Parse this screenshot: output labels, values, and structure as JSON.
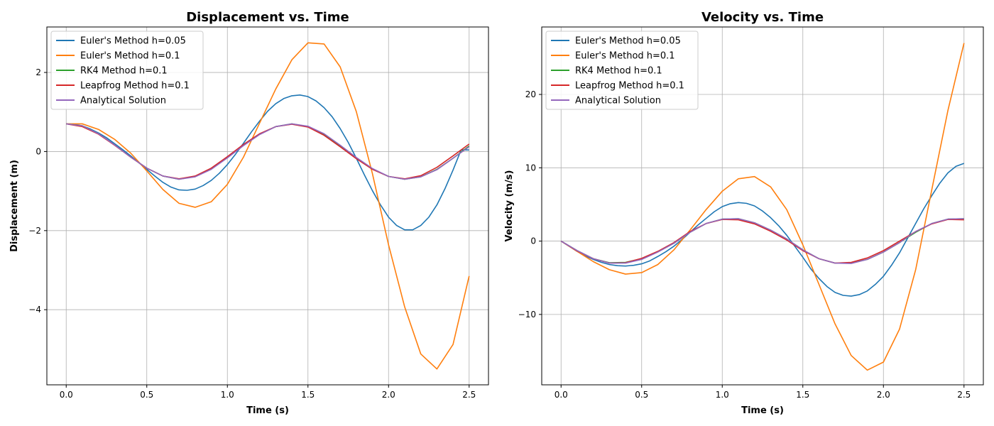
{
  "chart_data": [
    {
      "type": "line",
      "title": "Displacement vs. Time",
      "xlabel": "Time (s)",
      "ylabel": "Displacement (m)",
      "xlim": [
        -0.12,
        2.62
      ],
      "ylim": [
        -5.9,
        3.15
      ],
      "xticks": [
        0.0,
        0.5,
        1.0,
        1.5,
        2.0,
        2.5
      ],
      "xtick_labels": [
        "0.0",
        "0.5",
        "1.0",
        "1.5",
        "2.0",
        "2.5"
      ],
      "yticks": [
        -4,
        -2,
        0,
        2
      ],
      "ytick_labels": [
        "−4",
        "−2",
        "0",
        "2"
      ],
      "grid": true,
      "legend": "upper left",
      "series": [
        {
          "name": "Euler's Method h=0.05",
          "color": "#1f77b4",
          "x": [
            0,
            0.05,
            0.1,
            0.15,
            0.2,
            0.25,
            0.3,
            0.35,
            0.4,
            0.45,
            0.5,
            0.55,
            0.6,
            0.65,
            0.7,
            0.75,
            0.8,
            0.85,
            0.9,
            0.95,
            1.0,
            1.05,
            1.1,
            1.15,
            1.2,
            1.25,
            1.3,
            1.35,
            1.4,
            1.45,
            1.5,
            1.55,
            1.6,
            1.65,
            1.7,
            1.75,
            1.8,
            1.85,
            1.9,
            1.95,
            2.0,
            2.05,
            2.1,
            2.15,
            2.2,
            2.25,
            2.3,
            2.35,
            2.4,
            2.45,
            2.5
          ],
          "y": [
            0.7,
            0.69,
            0.65,
            0.57,
            0.47,
            0.35,
            0.2,
            0.05,
            -0.11,
            -0.28,
            -0.45,
            -0.62,
            -0.78,
            -0.9,
            -0.97,
            -0.98,
            -0.95,
            -0.86,
            -0.73,
            -0.55,
            -0.33,
            -0.07,
            0.21,
            0.5,
            0.77,
            1.02,
            1.21,
            1.34,
            1.41,
            1.43,
            1.39,
            1.28,
            1.11,
            0.88,
            0.58,
            0.23,
            -0.17,
            -0.59,
            -0.99,
            -1.35,
            -1.66,
            -1.87,
            -1.98,
            -1.98,
            -1.87,
            -1.66,
            -1.35,
            -0.94,
            -0.47,
            0.04,
            0.04
          ]
        },
        {
          "name": "Euler's Method h=0.1",
          "color": "#ff7f0e",
          "x": [
            0,
            0.1,
            0.2,
            0.3,
            0.4,
            0.5,
            0.6,
            0.7,
            0.8,
            0.9,
            1.0,
            1.1,
            1.2,
            1.3,
            1.4,
            1.5,
            1.6,
            1.7,
            1.8,
            1.9,
            2.0,
            2.1,
            2.2,
            2.3,
            2.4,
            2.5
          ],
          "y": [
            0.7,
            0.7,
            0.56,
            0.31,
            -0.04,
            -0.49,
            -0.96,
            -1.31,
            -1.41,
            -1.27,
            -0.83,
            -0.14,
            0.72,
            1.58,
            2.32,
            2.75,
            2.72,
            2.14,
            1.01,
            -0.56,
            -2.36,
            -3.93,
            -5.12,
            -5.5,
            -4.88,
            -3.15
          ]
        },
        {
          "name": "RK4 Method h=0.1",
          "color": "#2ca02c",
          "x": [
            0,
            0.1,
            0.2,
            0.3,
            0.4,
            0.5,
            0.6,
            0.7,
            0.8,
            0.9,
            1.0,
            1.1,
            1.2,
            1.3,
            1.4,
            1.5,
            1.6,
            1.7,
            1.8,
            1.9,
            2.0,
            2.1,
            2.2,
            2.3,
            2.4,
            2.5
          ],
          "y": [
            0.7,
            0.65,
            0.45,
            0.17,
            -0.14,
            -0.42,
            -0.62,
            -0.7,
            -0.63,
            -0.44,
            -0.15,
            0.16,
            0.44,
            0.63,
            0.7,
            0.63,
            0.43,
            0.14,
            -0.16,
            -0.44,
            -0.63,
            -0.7,
            -0.64,
            -0.45,
            -0.17,
            0.14
          ]
        },
        {
          "name": "Leapfrog Method h=0.1",
          "color": "#d62728",
          "x": [
            0,
            0.1,
            0.2,
            0.3,
            0.4,
            0.5,
            0.6,
            0.7,
            0.8,
            0.9,
            1.0,
            1.1,
            1.2,
            1.3,
            1.4,
            1.5,
            1.6,
            1.7,
            1.8,
            1.9,
            2.0,
            2.1,
            2.2,
            2.3,
            2.4,
            2.5
          ],
          "y": [
            0.7,
            0.63,
            0.44,
            0.16,
            -0.14,
            -0.42,
            -0.62,
            -0.69,
            -0.62,
            -0.42,
            -0.13,
            0.18,
            0.45,
            0.63,
            0.69,
            0.62,
            0.41,
            0.12,
            -0.18,
            -0.45,
            -0.63,
            -0.69,
            -0.61,
            -0.4,
            -0.11,
            0.19
          ]
        },
        {
          "name": "Analytical Solution",
          "color": "#9467bd",
          "x": [
            0,
            0.1,
            0.2,
            0.3,
            0.4,
            0.5,
            0.6,
            0.7,
            0.8,
            0.9,
            1.0,
            1.1,
            1.2,
            1.3,
            1.4,
            1.5,
            1.6,
            1.7,
            1.8,
            1.9,
            2.0,
            2.1,
            2.2,
            2.3,
            2.4,
            2.5
          ],
          "y": [
            0.7,
            0.65,
            0.45,
            0.17,
            -0.14,
            -0.42,
            -0.62,
            -0.7,
            -0.64,
            -0.45,
            -0.16,
            0.15,
            0.43,
            0.63,
            0.7,
            0.64,
            0.45,
            0.16,
            -0.15,
            -0.43,
            -0.63,
            -0.7,
            -0.64,
            -0.46,
            -0.17,
            0.12
          ]
        }
      ]
    },
    {
      "type": "line",
      "title": "Velocity vs. Time",
      "xlabel": "Time (s)",
      "ylabel": "Velocity (m/s)",
      "xlim": [
        -0.12,
        2.62
      ],
      "ylim": [
        -19.6,
        29.2
      ],
      "xticks": [
        0.0,
        0.5,
        1.0,
        1.5,
        2.0,
        2.5
      ],
      "xtick_labels": [
        "0.0",
        "0.5",
        "1.0",
        "1.5",
        "2.0",
        "2.5"
      ],
      "yticks": [
        -10,
        0,
        10,
        20
      ],
      "ytick_labels": [
        "−10",
        "0",
        "10",
        "20"
      ],
      "grid": true,
      "legend": "upper left",
      "series": [
        {
          "name": "Euler's Method h=0.05",
          "color": "#1f77b4",
          "x": [
            0,
            0.05,
            0.1,
            0.15,
            0.2,
            0.25,
            0.3,
            0.35,
            0.4,
            0.45,
            0.5,
            0.55,
            0.6,
            0.65,
            0.7,
            0.75,
            0.8,
            0.85,
            0.9,
            0.95,
            1.0,
            1.05,
            1.1,
            1.15,
            1.2,
            1.25,
            1.3,
            1.35,
            1.4,
            1.45,
            1.5,
            1.55,
            1.6,
            1.65,
            1.7,
            1.75,
            1.8,
            1.85,
            1.9,
            1.95,
            2.0,
            2.05,
            2.1,
            2.15,
            2.2,
            2.25,
            2.3,
            2.35,
            2.4,
            2.45,
            2.5
          ],
          "y": [
            0,
            -0.7,
            -1.4,
            -2.0,
            -2.5,
            -2.9,
            -3.2,
            -3.35,
            -3.4,
            -3.3,
            -3.1,
            -2.7,
            -2.1,
            -1.45,
            -0.7,
            0.2,
            1.2,
            2.2,
            3.1,
            4.0,
            4.7,
            5.1,
            5.25,
            5.15,
            4.8,
            4.1,
            3.2,
            2.1,
            0.8,
            -0.7,
            -2.2,
            -3.8,
            -5.1,
            -6.2,
            -7.0,
            -7.4,
            -7.5,
            -7.3,
            -6.8,
            -5.9,
            -4.8,
            -3.3,
            -1.6,
            0.4,
            2.4,
            4.4,
            6.2,
            7.9,
            9.3,
            10.2,
            10.6
          ]
        },
        {
          "name": "Euler's Method h=0.1",
          "color": "#ff7f0e",
          "x": [
            0,
            0.1,
            0.2,
            0.3,
            0.4,
            0.5,
            0.6,
            0.7,
            0.8,
            0.9,
            1.0,
            1.1,
            1.2,
            1.3,
            1.4,
            1.5,
            1.6,
            1.7,
            1.8,
            1.9,
            2.0,
            2.1,
            2.2,
            2.3,
            2.4,
            2.5
          ],
          "y": [
            0,
            -1.4,
            -2.8,
            -3.9,
            -4.5,
            -4.3,
            -3.2,
            -1.2,
            1.5,
            4.3,
            6.8,
            8.5,
            8.8,
            7.4,
            4.3,
            -0.5,
            -5.9,
            -11.3,
            -15.6,
            -17.6,
            -16.5,
            -12.0,
            -3.9,
            7.0,
            17.8,
            27.0
          ]
        },
        {
          "name": "RK4 Method h=0.1",
          "color": "#2ca02c",
          "x": [
            0,
            0.1,
            0.2,
            0.3,
            0.4,
            0.5,
            0.6,
            0.7,
            0.8,
            0.9,
            1.0,
            1.1,
            1.2,
            1.3,
            1.4,
            1.5,
            1.6,
            1.7,
            1.8,
            1.9,
            2.0,
            2.1,
            2.2,
            2.3,
            2.4,
            2.5
          ],
          "y": [
            0,
            -1.3,
            -2.4,
            -2.95,
            -2.9,
            -2.4,
            -1.45,
            -0.3,
            1.2,
            2.4,
            3.0,
            3.05,
            2.5,
            1.5,
            0.3,
            -1.2,
            -2.4,
            -3.0,
            -3.0,
            -2.5,
            -1.5,
            -0.2,
            1.2,
            2.4,
            3.0,
            3.05
          ]
        },
        {
          "name": "Leapfrog Method h=0.1",
          "color": "#d62728",
          "x": [
            0,
            0.1,
            0.2,
            0.3,
            0.4,
            0.5,
            0.6,
            0.7,
            0.8,
            0.9,
            1.0,
            1.1,
            1.2,
            1.3,
            1.4,
            1.5,
            1.6,
            1.7,
            1.8,
            1.9,
            2.0,
            2.1,
            2.2,
            2.3,
            2.4,
            2.5
          ],
          "y": [
            0,
            -1.35,
            -2.4,
            -3.0,
            -2.95,
            -2.35,
            -1.4,
            -0.2,
            1.3,
            2.4,
            2.95,
            2.9,
            2.35,
            1.35,
            0.15,
            -1.3,
            -2.4,
            -3.0,
            -2.9,
            -2.3,
            -1.3,
            0,
            1.3,
            2.35,
            2.95,
            2.9
          ]
        },
        {
          "name": "Analytical Solution",
          "color": "#9467bd",
          "x": [
            0,
            0.1,
            0.2,
            0.3,
            0.4,
            0.5,
            0.6,
            0.7,
            0.8,
            0.9,
            1.0,
            1.1,
            1.2,
            1.3,
            1.4,
            1.5,
            1.6,
            1.7,
            1.8,
            1.9,
            2.0,
            2.1,
            2.2,
            2.3,
            2.4,
            2.5
          ],
          "y": [
            0,
            -1.3,
            -2.4,
            -3.0,
            -3.0,
            -2.5,
            -1.5,
            -0.3,
            1.2,
            2.4,
            3.0,
            3.05,
            2.5,
            1.5,
            0.3,
            -1.2,
            -2.4,
            -3.0,
            -3.05,
            -2.5,
            -1.5,
            -0.2,
            1.3,
            2.4,
            3.0,
            3.05
          ]
        }
      ]
    }
  ]
}
